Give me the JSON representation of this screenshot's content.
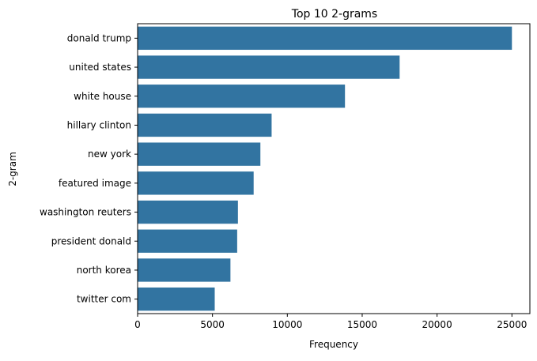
{
  "chart_data": {
    "type": "bar",
    "orientation": "horizontal",
    "title": "Top 10 2-grams",
    "xlabel": "Frequency",
    "ylabel": "2-gram",
    "xlim": [
      0,
      26200
    ],
    "xticks": [
      0,
      5000,
      10000,
      15000,
      20000,
      25000
    ],
    "grid": false,
    "bar_color": "#3274a1",
    "categories": [
      "donald trump",
      "united states",
      "white house",
      "hillary clinton",
      "new york",
      "featured image",
      "washington reuters",
      "president donald",
      "north korea",
      "twitter com"
    ],
    "values": [
      25000,
      17500,
      13850,
      8950,
      8200,
      7750,
      6700,
      6650,
      6200,
      5150
    ]
  }
}
